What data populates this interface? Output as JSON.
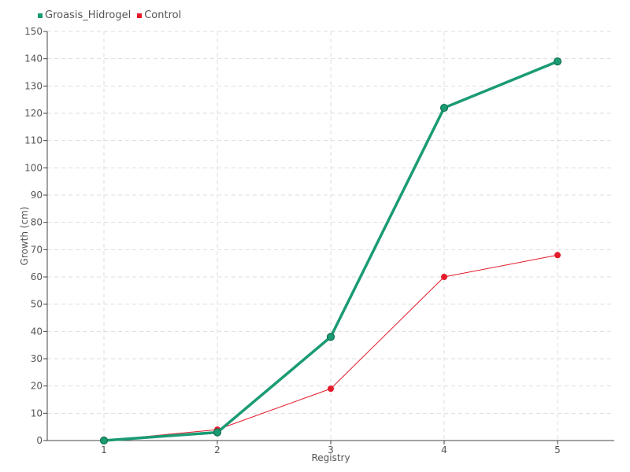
{
  "chart_data": {
    "type": "line",
    "categories": [
      "1",
      "2",
      "3",
      "4",
      "5"
    ],
    "series": [
      {
        "name": "Groasis_Hidrogel",
        "color": "#1a9b74",
        "values": [
          0,
          3,
          38,
          122,
          139
        ]
      },
      {
        "name": "Control",
        "color": "#e31a2a",
        "values": [
          0,
          4,
          19,
          60,
          68
        ]
      }
    ],
    "xlabel": "Registry",
    "ylabel": "Growth (cm)",
    "ylim": [
      0,
      150
    ],
    "yticks": [
      0,
      10,
      20,
      30,
      40,
      50,
      60,
      70,
      80,
      90,
      100,
      110,
      120,
      130,
      140,
      150
    ],
    "grid": true,
    "legend_position": "top-left"
  }
}
